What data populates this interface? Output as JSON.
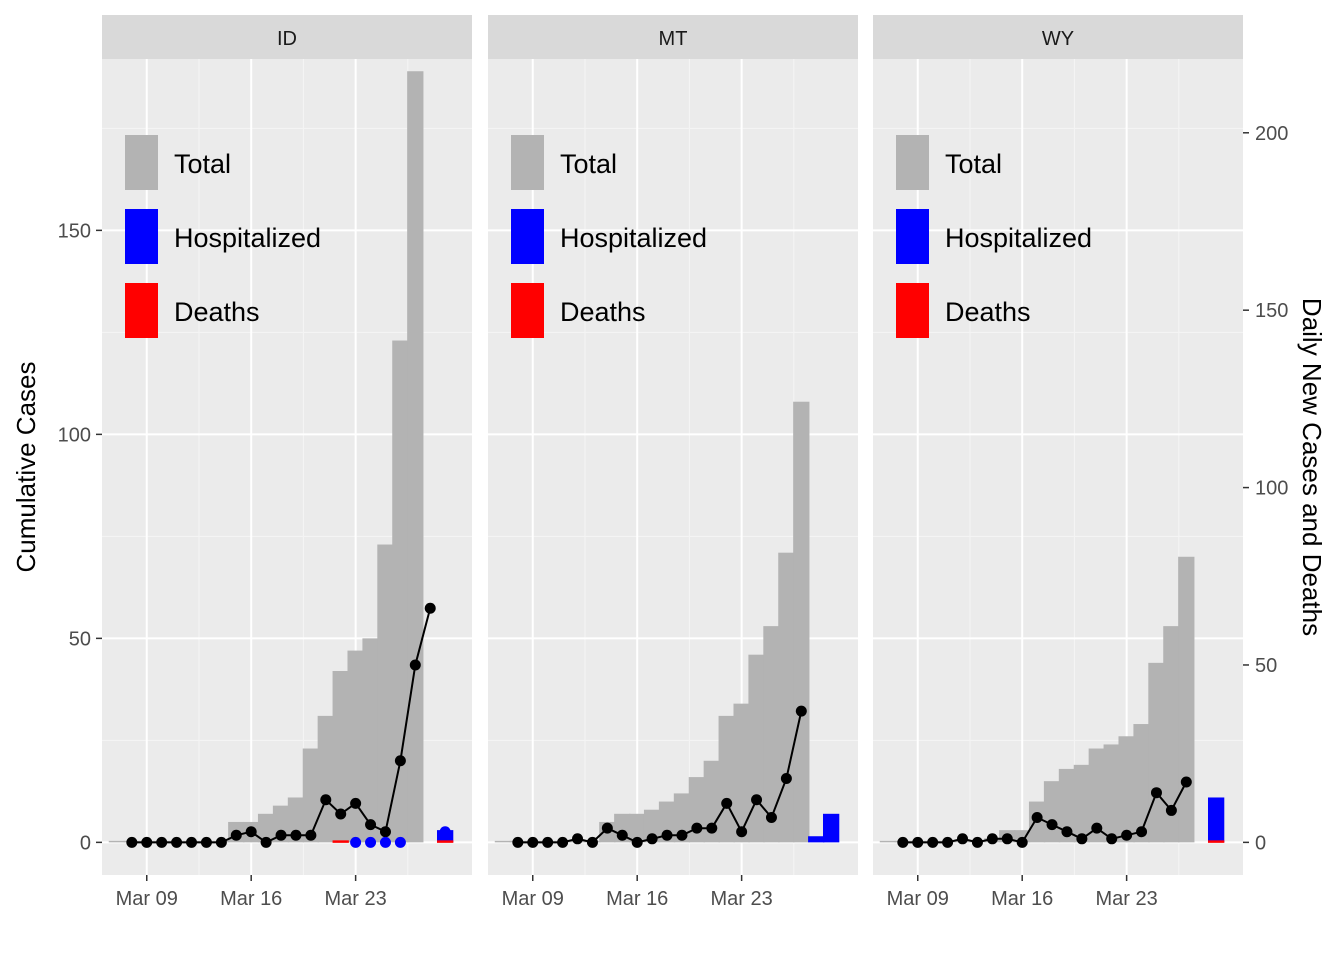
{
  "chart_data": {
    "type": "bar",
    "ylabel": "Cumulative Cases",
    "y2label": "Daily New Cases and Deaths",
    "ylim": [
      -8,
      192
    ],
    "y_ticks": [
      0,
      50,
      100,
      150
    ],
    "y2_ticks": [
      0,
      50,
      100,
      150,
      200
    ],
    "y2_scale_note": "secondary axis = primary x 1.15",
    "x_ticks": [
      "Mar 09",
      "Mar 16",
      "Mar 23"
    ],
    "x_tick_days": [
      9,
      16,
      23
    ],
    "xlim_days": [
      6,
      30.8
    ],
    "legend": [
      {
        "label": "Total",
        "color": "#b3b3b3"
      },
      {
        "label": "Hospitalized",
        "color": "#0000ff"
      },
      {
        "label": "Deaths",
        "color": "#ff0000"
      }
    ],
    "days": [
      7,
      8,
      9,
      10,
      11,
      12,
      13,
      14,
      15,
      16,
      17,
      18,
      19,
      20,
      21,
      22,
      23,
      24,
      25,
      26,
      27,
      28,
      29
    ],
    "panels": [
      {
        "name": "ID",
        "total_cumulative": [
          0,
          0,
          0,
          0,
          0,
          0,
          0,
          0,
          5,
          5,
          7,
          9,
          11,
          23,
          31,
          42,
          47,
          50,
          73,
          123,
          189
        ],
        "total_start_day": 7,
        "hospitalized_cumulative": {
          "day": 29,
          "value": 3
        },
        "deaths_cumulative": [
          {
            "day": 22,
            "value": 0.3
          },
          {
            "day": 29,
            "value": 0.3
          }
        ],
        "daily_new_cases": [
          0,
          0,
          0,
          0,
          0,
          0,
          0,
          2,
          3,
          0,
          2,
          2,
          2,
          12,
          8,
          11,
          5,
          3,
          23,
          50,
          66
        ],
        "daily_start_day": 8,
        "daily_hospitalized": [
          {
            "day": 23,
            "value": 0
          },
          {
            "day": 24,
            "value": 0
          },
          {
            "day": 25,
            "value": 0
          },
          {
            "day": 26,
            "value": 0
          },
          {
            "day": 29,
            "value": 3
          }
        ]
      },
      {
        "name": "MT",
        "total_cumulative": [
          0,
          0,
          0,
          0,
          0,
          0,
          0,
          5,
          7,
          7,
          8,
          10,
          12,
          16,
          20,
          31,
          34,
          46,
          53,
          71,
          108
        ],
        "total_start_day": 7,
        "hospitalized_cumulative": [
          {
            "day": 28,
            "value": 1.5
          },
          {
            "day": 29,
            "value": 7
          }
        ],
        "daily_new_cases": [
          0,
          0,
          0,
          0,
          1,
          0,
          4,
          2,
          0,
          1,
          2,
          2,
          4,
          4,
          11,
          3,
          12,
          7,
          18,
          37
        ],
        "daily_start_day": 8
      },
      {
        "name": "WY",
        "total_cumulative": [
          0,
          0,
          0,
          0,
          0,
          0,
          0,
          1,
          3,
          3,
          10,
          15,
          18,
          19,
          23,
          24,
          26,
          29,
          44,
          53,
          70
        ],
        "total_start_day": 7,
        "hospitalized_cumulative": {
          "day": 29,
          "value": 11
        },
        "deaths_cumulative": {
          "day": 29,
          "value": 0.3
        },
        "daily_new_cases": [
          0,
          0,
          0,
          0,
          1,
          0,
          1,
          1,
          0,
          7,
          5,
          3,
          1,
          4,
          1,
          2,
          3,
          14,
          9,
          17
        ],
        "daily_start_day": 8
      }
    ]
  }
}
